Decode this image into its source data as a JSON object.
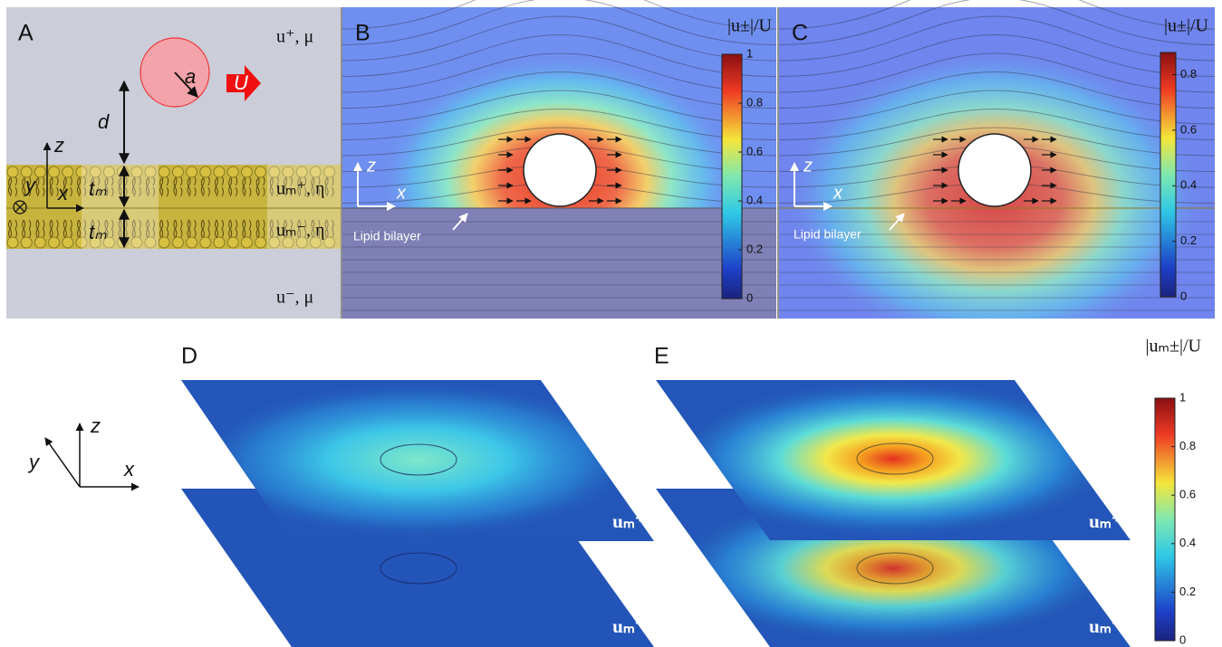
{
  "panel_labels": [
    "A",
    "B",
    "C",
    "D",
    "E"
  ],
  "panel_a": {
    "upper_fluid": "u⁺, μ",
    "lower_fluid": "u⁻, μ",
    "upper_leaflet": "uₘ⁺, η",
    "lower_leaflet": "uₘ⁻, η",
    "radius": "a",
    "velocity": "U",
    "distance": "d",
    "thickness_upper": "tₘ",
    "thickness_lower": "tₘ",
    "axis_z": "z",
    "axis_x": "x",
    "axis_y": "y"
  },
  "panel_b": {
    "axis_z": "z",
    "axis_x": "x",
    "annotation": "Lipid bilayer",
    "colorbar": {
      "title": "|u±|/U",
      "lim": [
        0,
        1
      ],
      "ticks": [
        0,
        0.2,
        0.4,
        0.6,
        0.8,
        1
      ]
    }
  },
  "panel_c": {
    "axis_z": "z",
    "axis_x": "x",
    "annotation": "Lipid bilayer",
    "colorbar": {
      "title": "|u±|/U",
      "lim": [
        0,
        0.88
      ],
      "ticks": [
        0,
        0.2,
        0.4,
        0.6,
        0.8
      ]
    }
  },
  "panel_d": {
    "axis_z": "z",
    "axis_y": "y",
    "axis_x": "x",
    "upper_label": "uₘ⁺",
    "lower_label": "uₘ⁻"
  },
  "panel_e": {
    "upper_label": "uₘ⁺",
    "lower_label": "uₘ⁻",
    "colorbar": {
      "title": "|uₘ±|/U",
      "lim": [
        0,
        1
      ],
      "ticks": [
        0,
        0.2,
        0.4,
        0.6,
        0.8,
        1
      ]
    }
  }
}
